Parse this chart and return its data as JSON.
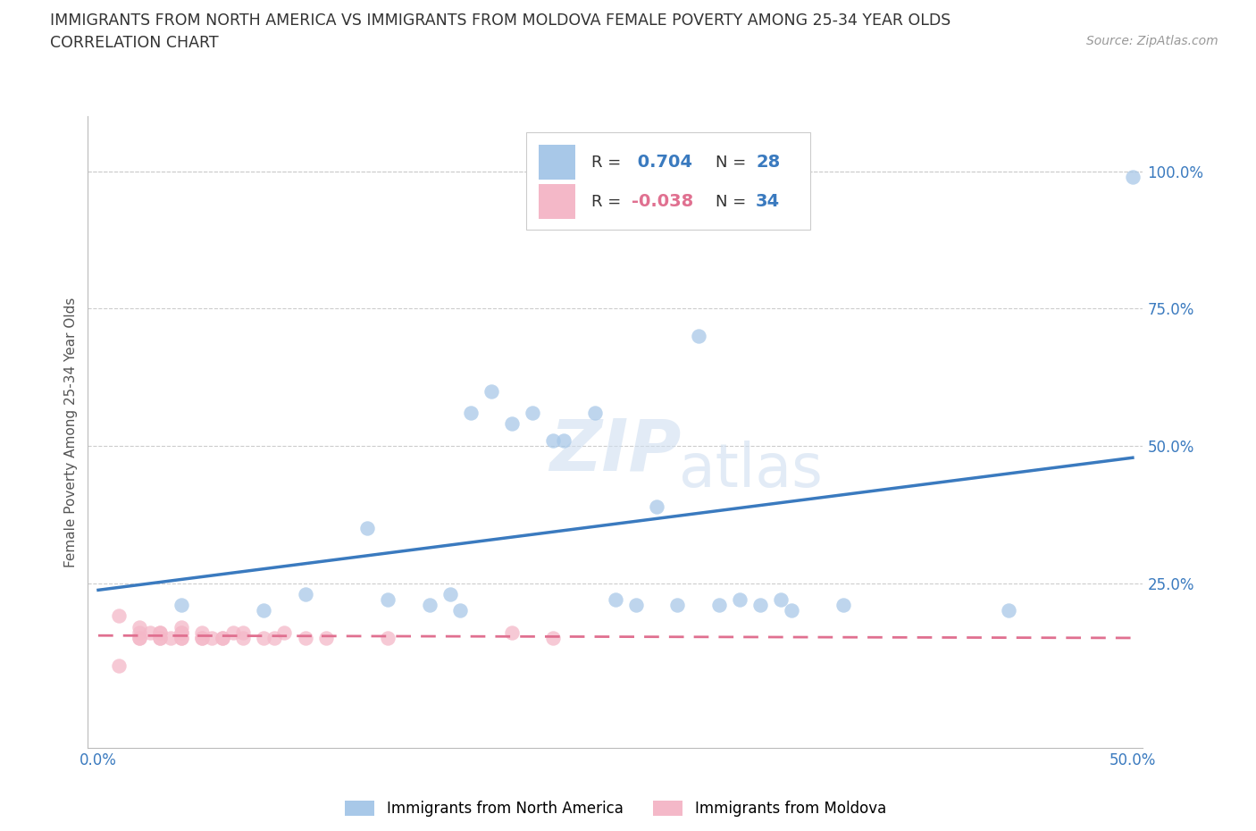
{
  "title_line1": "IMMIGRANTS FROM NORTH AMERICA VS IMMIGRANTS FROM MOLDOVA FEMALE POVERTY AMONG 25-34 YEAR OLDS",
  "title_line2": "CORRELATION CHART",
  "source": "Source: ZipAtlas.com",
  "ylabel": "Female Poverty Among 25-34 Year Olds",
  "xlim": [
    -0.005,
    0.505
  ],
  "ylim": [
    -0.05,
    1.1
  ],
  "xticks": [
    0.0,
    0.1,
    0.2,
    0.3,
    0.4,
    0.5
  ],
  "xticklabels": [
    "0.0%",
    "",
    "",
    "",
    "",
    "50.0%"
  ],
  "ytick_positions": [
    0.0,
    0.25,
    0.5,
    0.75,
    1.0
  ],
  "ytick_labels": [
    "",
    "25.0%",
    "50.0%",
    "75.0%",
    "100.0%"
  ],
  "blue_R": 0.704,
  "blue_N": 28,
  "pink_R": -0.038,
  "pink_N": 34,
  "blue_color": "#a8c8e8",
  "pink_color": "#f4b8c8",
  "blue_line_color": "#3a7abf",
  "pink_line_color": "#e07090",
  "legend_label_blue": "Immigrants from North America",
  "legend_label_pink": "Immigrants from Moldova",
  "blue_scatter_x": [
    0.04,
    0.08,
    0.1,
    0.13,
    0.14,
    0.16,
    0.17,
    0.175,
    0.18,
    0.19,
    0.2,
    0.21,
    0.22,
    0.225,
    0.24,
    0.25,
    0.26,
    0.27,
    0.28,
    0.29,
    0.3,
    0.31,
    0.32,
    0.33,
    0.335,
    0.36,
    0.44,
    0.5
  ],
  "blue_scatter_y": [
    0.21,
    0.2,
    0.23,
    0.35,
    0.22,
    0.21,
    0.23,
    0.2,
    0.56,
    0.6,
    0.54,
    0.56,
    0.51,
    0.51,
    0.56,
    0.22,
    0.21,
    0.39,
    0.21,
    0.7,
    0.21,
    0.22,
    0.21,
    0.22,
    0.2,
    0.21,
    0.2,
    0.99
  ],
  "pink_scatter_x": [
    0.01,
    0.01,
    0.02,
    0.02,
    0.02,
    0.02,
    0.025,
    0.03,
    0.03,
    0.03,
    0.03,
    0.035,
    0.04,
    0.04,
    0.04,
    0.04,
    0.04,
    0.05,
    0.05,
    0.05,
    0.055,
    0.06,
    0.06,
    0.065,
    0.07,
    0.07,
    0.08,
    0.085,
    0.09,
    0.1,
    0.11,
    0.14,
    0.2,
    0.22
  ],
  "pink_scatter_y": [
    0.1,
    0.19,
    0.15,
    0.15,
    0.16,
    0.17,
    0.16,
    0.16,
    0.15,
    0.15,
    0.16,
    0.15,
    0.15,
    0.16,
    0.16,
    0.15,
    0.17,
    0.15,
    0.15,
    0.16,
    0.15,
    0.15,
    0.15,
    0.16,
    0.16,
    0.15,
    0.15,
    0.15,
    0.16,
    0.15,
    0.15,
    0.15,
    0.16,
    0.15
  ]
}
